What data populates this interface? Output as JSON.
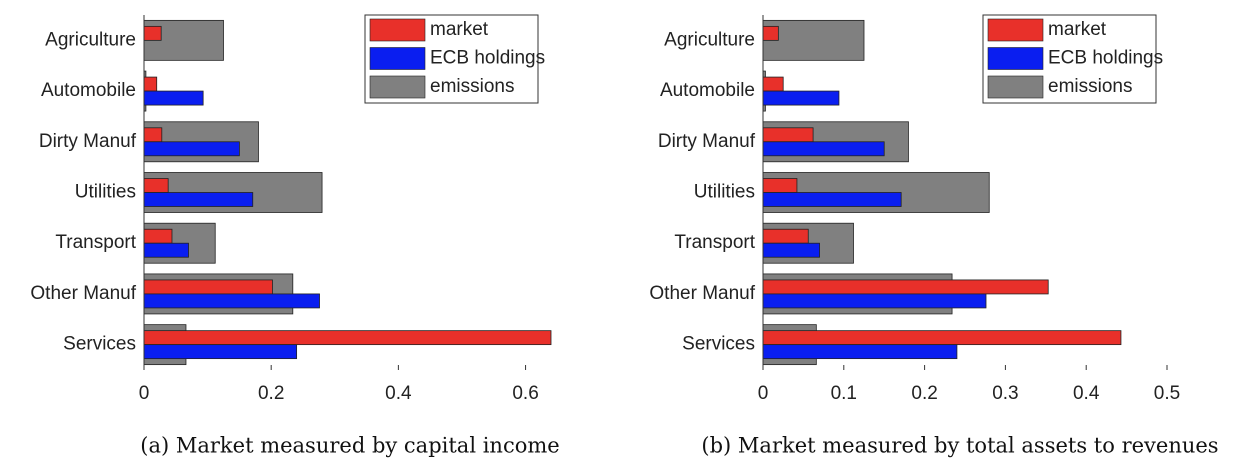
{
  "chart_data": [
    {
      "type": "bar",
      "orientation": "horizontal",
      "caption": "(a) Market measured by capital income",
      "categories": [
        "Agriculture",
        "Automobile",
        "Dirty Manuf",
        "Utilities",
        "Transport",
        "Other Manuf",
        "Services"
      ],
      "series": [
        {
          "name": "market",
          "color": "#e8302a",
          "values": [
            0.027,
            0.02,
            0.028,
            0.038,
            0.044,
            0.202,
            0.64
          ]
        },
        {
          "name": "ECB holdings",
          "color": "#0a1ef0",
          "values": [
            0,
            0.093,
            0.15,
            0.171,
            0.07,
            0.276,
            0.24
          ]
        },
        {
          "name": "emissions",
          "color": "#808080",
          "values": [
            0.125,
            0.003,
            0.18,
            0.28,
            0.112,
            0.234,
            0.066
          ]
        }
      ],
      "xlim": [
        0,
        0.64
      ],
      "xticks": [
        0,
        0.2,
        0.4,
        0.6
      ],
      "legend": "upper right"
    },
    {
      "type": "bar",
      "orientation": "horizontal",
      "caption": "(b) Market measured by total assets to revenues",
      "categories": [
        "Agriculture",
        "Automobile",
        "Dirty Manuf",
        "Utilities",
        "Transport",
        "Other Manuf",
        "Services"
      ],
      "series": [
        {
          "name": "market",
          "color": "#e8302a",
          "values": [
            0.019,
            0.025,
            0.062,
            0.042,
            0.056,
            0.353,
            0.443
          ]
        },
        {
          "name": "ECB holdings",
          "color": "#0a1ef0",
          "values": [
            0,
            0.094,
            0.15,
            0.171,
            0.07,
            0.276,
            0.24
          ]
        },
        {
          "name": "emissions",
          "color": "#808080",
          "values": [
            0.125,
            0.003,
            0.18,
            0.28,
            0.112,
            0.234,
            0.066
          ]
        }
      ],
      "xlim": [
        0,
        0.5
      ],
      "xticks": [
        0,
        0.1,
        0.2,
        0.3,
        0.4,
        0.5
      ],
      "legend": "upper right"
    }
  ]
}
